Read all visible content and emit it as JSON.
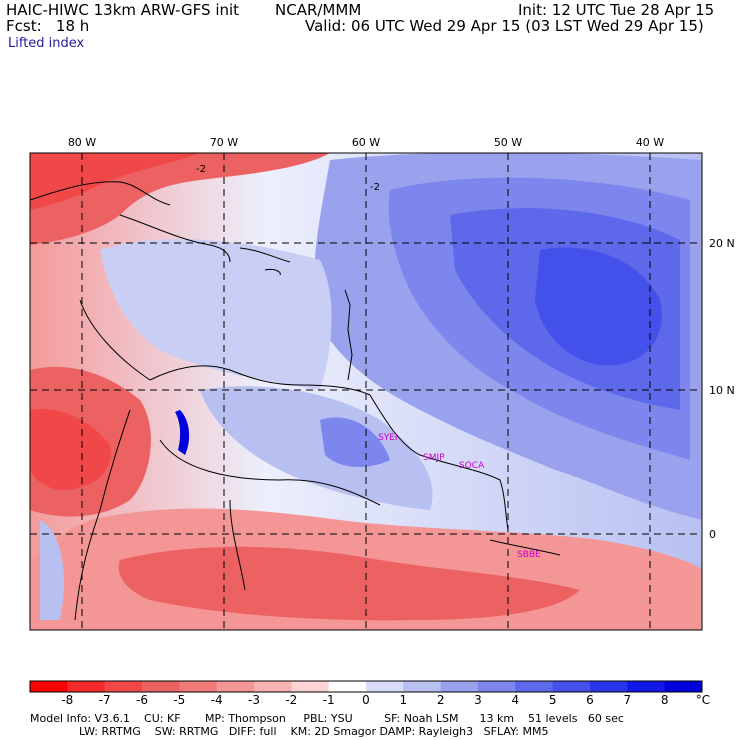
{
  "header": {
    "model": "HAIC-HIWC 13km ARW-GFS init",
    "org": "NCAR/MMM",
    "init": "Init: 12 UTC Tue 28 Apr 15",
    "fcst": "Fcst:   18 h",
    "valid": "Valid: 06 UTC Wed 29 Apr 15 (03 LST Wed 29 Apr 15)",
    "field": "Lifted index"
  },
  "map": {
    "lon_labels": [
      "80 W",
      "70 W",
      "60 W",
      "50 W",
      "40 W"
    ],
    "lat_labels": [
      "20 N",
      "10 N",
      "0"
    ],
    "contour_labels": [
      "-2",
      "-2"
    ],
    "station_labels": [
      "SYEI",
      "SMJP",
      "SOCA",
      "SBBE"
    ],
    "station_color": "#cc00cc"
  },
  "colorbar": {
    "labels": [
      "-8",
      "-7",
      "-6",
      "-5",
      "-4",
      "-3",
      "-2",
      "-1",
      "0",
      "1",
      "2",
      "3",
      "4",
      "5",
      "6",
      "7",
      "8"
    ],
    "unit": "°C",
    "colors": [
      "#ff0000",
      "#f52a2a",
      "#f04848",
      "#ec6262",
      "#f07a7a",
      "#f49696",
      "#f8b2b2",
      "#fcd4d4",
      "#ffffff",
      "#d8dcf8",
      "#b8c0f2",
      "#9aa2ee",
      "#7c86ec",
      "#5e68ea",
      "#4450ea",
      "#2a34ea",
      "#1018e6",
      "#0000dc"
    ]
  },
  "footer": {
    "line1": "Model Info: V3.6.1    CU: KF       MP: Thompson     PBL: YSU         SF: Noah LSM      13 km    51 levels   60 sec",
    "line2": "              LW: RRTMG    SW: RRTMG   DIFF: full    KM: 2D Smagor DAMP: Rayleigh3   SFLAY: MM5"
  }
}
